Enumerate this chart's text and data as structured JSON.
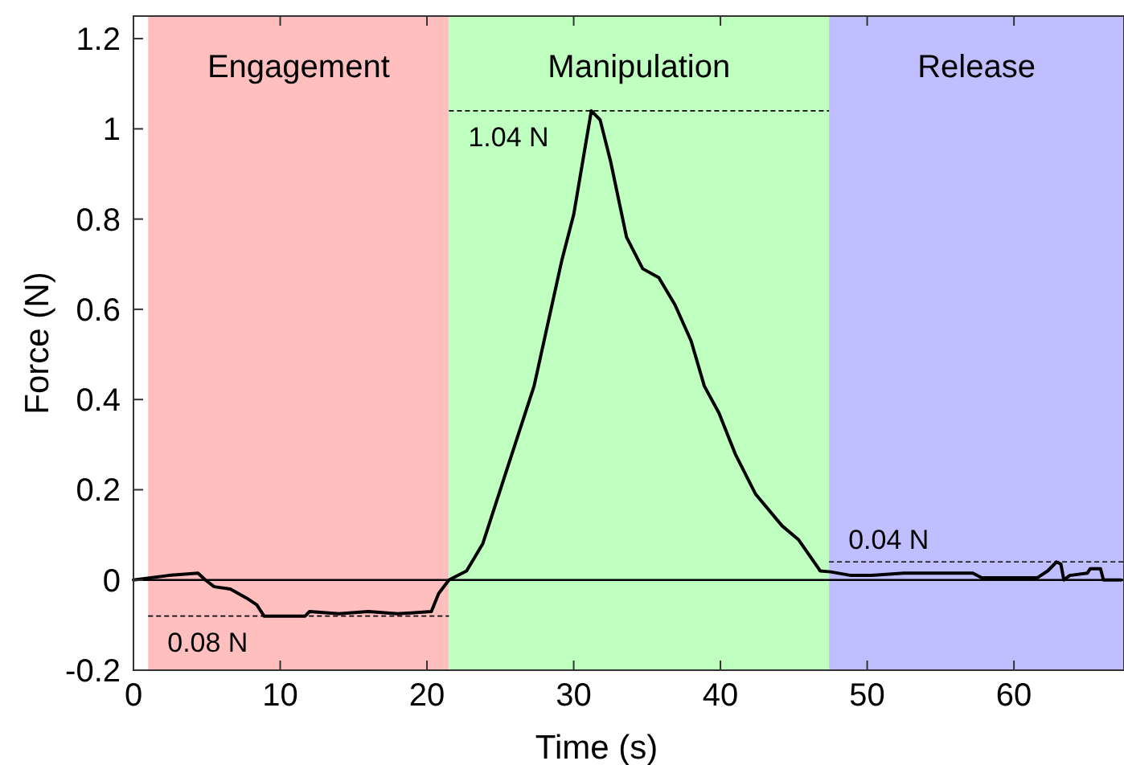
{
  "chart_data": {
    "type": "line",
    "xlabel": "Time (s)",
    "ylabel": "Force (N)",
    "xlim": [
      0,
      67.5
    ],
    "ylim": [
      -0.2,
      1.25
    ],
    "xticks": [
      0,
      10,
      20,
      30,
      40,
      50,
      60
    ],
    "yticks": [
      -0.2,
      0,
      0.2,
      0.4,
      0.6,
      0.8,
      1,
      1.2
    ],
    "bands": [
      {
        "axis": "x",
        "from": 1,
        "to": 21.5,
        "label": "Engagement",
        "color": "#ffbfbf"
      },
      {
        "axis": "x",
        "from": 21.5,
        "to": 47.4,
        "label": "Manipulation",
        "color": "#bfffbf"
      },
      {
        "axis": "x",
        "from": 47.4,
        "to": 67.5,
        "label": "Release",
        "color": "#bfbfff"
      }
    ],
    "ref_lines": [
      {
        "axis": "y",
        "value": -0.08,
        "label": "0.08 N",
        "line_style": "dashed",
        "color": "#000000"
      },
      {
        "axis": "y",
        "value": 1.04,
        "label": "1.04 N",
        "line_style": "dashed",
        "color": "#000000"
      },
      {
        "axis": "y",
        "value": 0.04,
        "label": "0.04 N",
        "line_style": "dashed",
        "color": "#000000"
      },
      {
        "axis": "y",
        "value": 0,
        "line_style": "solid",
        "color": "#000000"
      }
    ],
    "line_style": "solid",
    "marker": "none",
    "grid": false,
    "series": [
      {
        "color": "#000000",
        "x": [
          0,
          2.4,
          4.4,
          4.9,
          5.5,
          6.6,
          7.7,
          8.4,
          8.9,
          11.7,
          12,
          14,
          16,
          18,
          20.3,
          20.8,
          21.5,
          22.7,
          23.8,
          25.2,
          27.3,
          29.2,
          30,
          31.2,
          31.8,
          32.5,
          33.6,
          34.7,
          35.8,
          36.9,
          38,
          38.9,
          39.9,
          41,
          42.4,
          44.2,
          45.3,
          46.8,
          47.5,
          48.9,
          50.3,
          52.5,
          57.2,
          57.8,
          61.6,
          62.3,
          62.9,
          63.2,
          63.4,
          63.8,
          65,
          65.2,
          65.9,
          66.1,
          67.3
        ],
        "values": [
          0,
          0.01,
          0.015,
          0,
          -0.015,
          -0.02,
          -0.04,
          -0.055,
          -0.08,
          -0.08,
          -0.07,
          -0.075,
          -0.07,
          -0.075,
          -0.07,
          -0.03,
          0,
          0.02,
          0.08,
          0.22,
          0.43,
          0.71,
          0.81,
          1.04,
          1.02,
          0.93,
          0.76,
          0.69,
          0.67,
          0.61,
          0.53,
          0.43,
          0.37,
          0.28,
          0.19,
          0.12,
          0.09,
          0.02,
          0.018,
          0.01,
          0.01,
          0.015,
          0.015,
          0.005,
          0.005,
          0.02,
          0.04,
          0.035,
          0,
          0.01,
          0.015,
          0.025,
          0.025,
          0,
          0
        ]
      }
    ]
  }
}
